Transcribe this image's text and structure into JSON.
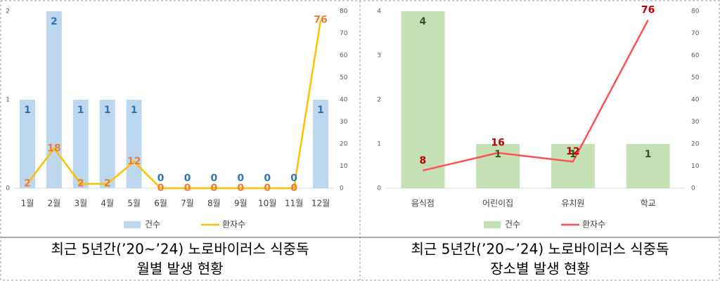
{
  "chart_data": [
    {
      "type": "combo",
      "categories": [
        "1월",
        "2월",
        "3월",
        "4월",
        "5월",
        "6월",
        "7월",
        "8월",
        "9월",
        "10월",
        "11월",
        "12월"
      ],
      "series": [
        {
          "name": "건수",
          "type": "bar",
          "color": "#bdd7ee",
          "label_color": "#2e75b6",
          "values": [
            1,
            2,
            1,
            1,
            1,
            0,
            0,
            0,
            0,
            0,
            0,
            1
          ]
        },
        {
          "name": "환자수",
          "type": "line",
          "axis": "y2",
          "color": "#ffc000",
          "label_color": "#ed7d31",
          "values": [
            2,
            18,
            2,
            2,
            12,
            0,
            0,
            0,
            0,
            0,
            0,
            76
          ]
        }
      ],
      "ylim": [
        0,
        2
      ],
      "yticks": [
        0,
        1,
        2
      ],
      "y2lim": [
        0,
        80
      ],
      "y2ticks": [
        0,
        10,
        20,
        30,
        40,
        50,
        60,
        70,
        80
      ],
      "caption": [
        "최근 5년간(’20~’24) 노로바이러스 식중독",
        "월별 발생 현황"
      ]
    },
    {
      "type": "combo",
      "categories": [
        "음식점",
        "어린이집",
        "유치원",
        "학교"
      ],
      "series": [
        {
          "name": "건수",
          "type": "bar",
          "color": "#c5e0b4",
          "label_color": "#375623",
          "values": [
            4,
            1,
            1,
            1
          ]
        },
        {
          "name": "환자수",
          "type": "line",
          "axis": "y2",
          "color": "#ff5050",
          "label_color": "#c00000",
          "values": [
            8,
            16,
            12,
            76
          ]
        }
      ],
      "ylim": [
        0,
        4
      ],
      "yticks": [
        0,
        1,
        2,
        3,
        4
      ],
      "y2lim": [
        0,
        80
      ],
      "y2ticks": [
        0,
        10,
        20,
        30,
        40,
        50,
        60,
        70,
        80
      ],
      "caption": [
        "최근 5년간(’20~’24) 노로바이러스 식중독",
        "장소별 발생 현황"
      ]
    }
  ]
}
